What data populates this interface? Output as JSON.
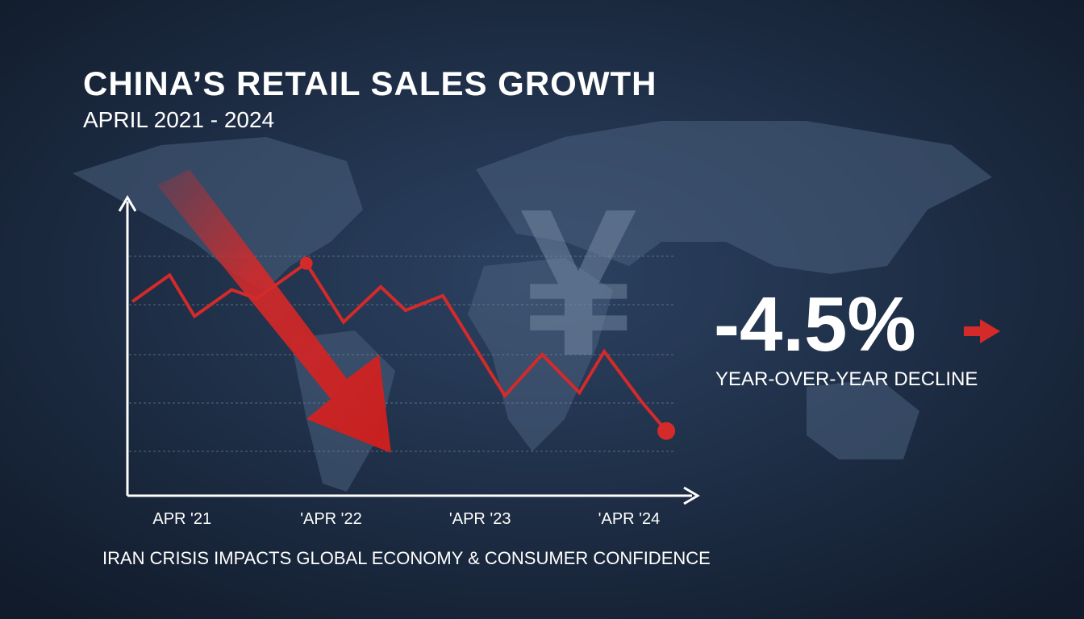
{
  "chart_data": {
    "type": "line",
    "title": "CHINA’S RETAIL SALES GROWTH",
    "subtitle": "APRIL 2021 - 2024",
    "x": [
      -4,
      -1,
      1,
      4,
      6,
      10,
      13,
      16,
      18,
      21,
      26,
      29,
      32,
      34,
      37,
      39
    ],
    "series": [
      {
        "color": "#d42a2a",
        "values": [
          66,
          75,
          61,
          70,
          67,
          79,
          59,
          71,
          63,
          68,
          34,
          48,
          35,
          49,
          32,
          22
        ]
      }
    ],
    "xlim": [
      -4.4,
      41.2
    ],
    "xticks": [
      {
        "value": 0,
        "label": "APR '21"
      },
      {
        "value": 12,
        "label": "'APR '22"
      },
      {
        "value": 24,
        "label": "'APR '23"
      },
      {
        "value": 36,
        "label": "'APR '24"
      }
    ],
    "ylim": [
      0,
      100
    ],
    "highlight_stat": "-4.5%",
    "highlight_label": "YEAR-OVER-YEAR DECLINE",
    "footnote": "IRAN CRISIS IMPACTS GLOBAL ECONOMY & CONSUMER CONFIDENCE"
  }
}
